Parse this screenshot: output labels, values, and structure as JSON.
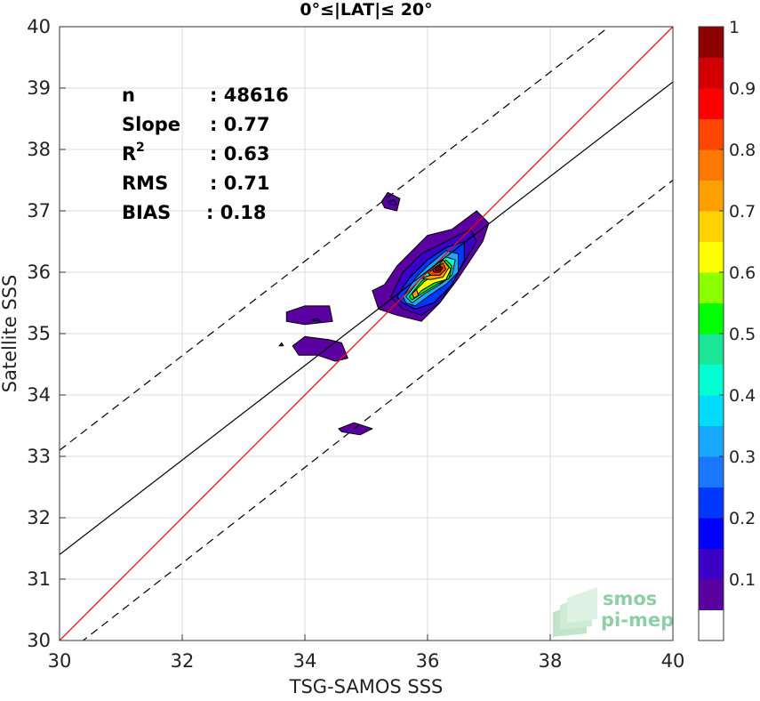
{
  "chart_data": {
    "type": "contour",
    "title": "0°≤|LAT|≤ 20°",
    "xlabel": "TSG-SAMOS SSS",
    "ylabel": "Satellite SSS",
    "xlim": [
      30,
      40
    ],
    "ylim": [
      30,
      40
    ],
    "xticks": [
      "30",
      "32",
      "34",
      "36",
      "38",
      "40"
    ],
    "yticks": [
      "30",
      "31",
      "32",
      "33",
      "34",
      "35",
      "36",
      "37",
      "38",
      "39",
      "40"
    ],
    "grid": true,
    "stats": [
      {
        "label": "n",
        "value": ": 48616"
      },
      {
        "label": "Slope",
        "value": ": 0.77"
      },
      {
        "label": "R",
        "sup": "2",
        "value": ": 0.63"
      },
      {
        "label": "RMS",
        "value": ": 0.71"
      },
      {
        "label": "BIAS",
        "value": ": 0.18"
      }
    ],
    "lines": [
      {
        "kind": "one-to-one",
        "color": "#ff0000",
        "style": "solid",
        "points": [
          [
            30,
            30
          ],
          [
            40,
            40
          ]
        ]
      },
      {
        "kind": "regression",
        "color": "#000000",
        "style": "solid",
        "points": [
          [
            30,
            31.4
          ],
          [
            40,
            39.1
          ]
        ]
      },
      {
        "kind": "regression+2rms",
        "color": "#000000",
        "style": "dashed",
        "points": [
          [
            30,
            33.1
          ],
          [
            40,
            40.8
          ]
        ]
      },
      {
        "kind": "regression-2rms",
        "color": "#000000",
        "style": "dashed",
        "points": [
          [
            30,
            29.7
          ],
          [
            40,
            37.5
          ]
        ]
      }
    ],
    "contours": [
      {
        "level": 0.05,
        "points": [
          [
            35.3,
            35.8
          ],
          [
            35.5,
            36.1
          ],
          [
            35.8,
            36.4
          ],
          [
            36.0,
            36.6
          ],
          [
            36.4,
            36.7
          ],
          [
            36.8,
            37.0
          ],
          [
            37.0,
            36.8
          ],
          [
            36.9,
            36.5
          ],
          [
            36.5,
            35.9
          ],
          [
            36.2,
            35.5
          ],
          [
            35.9,
            35.2
          ],
          [
            35.5,
            35.3
          ],
          [
            35.2,
            35.4
          ],
          [
            35.1,
            35.7
          ]
        ]
      },
      {
        "level": 0.1,
        "points": [
          [
            35.4,
            35.6
          ],
          [
            35.6,
            36.0
          ],
          [
            35.9,
            36.3
          ],
          [
            36.3,
            36.5
          ],
          [
            36.7,
            36.7
          ],
          [
            36.8,
            36.5
          ],
          [
            36.5,
            36.0
          ],
          [
            36.2,
            35.5
          ],
          [
            35.9,
            35.3
          ],
          [
            35.6,
            35.4
          ]
        ]
      },
      {
        "level": 0.2,
        "points": [
          [
            35.5,
            35.6
          ],
          [
            35.7,
            35.9
          ],
          [
            36.0,
            36.2
          ],
          [
            36.3,
            36.4
          ],
          [
            36.6,
            36.5
          ],
          [
            36.6,
            36.2
          ],
          [
            36.4,
            35.8
          ],
          [
            36.1,
            35.5
          ],
          [
            35.8,
            35.4
          ],
          [
            35.6,
            35.5
          ]
        ]
      },
      {
        "level": 0.3,
        "points": [
          [
            35.6,
            35.6
          ],
          [
            35.8,
            35.9
          ],
          [
            36.0,
            36.1
          ],
          [
            36.3,
            36.35
          ],
          [
            36.5,
            36.3
          ],
          [
            36.5,
            36.0
          ],
          [
            36.3,
            35.8
          ],
          [
            36.0,
            35.6
          ],
          [
            35.8,
            35.45
          ],
          [
            35.65,
            35.5
          ]
        ]
      },
      {
        "level": 0.4,
        "points": [
          [
            35.65,
            35.6
          ],
          [
            35.85,
            35.85
          ],
          [
            36.05,
            36.05
          ],
          [
            36.3,
            36.25
          ],
          [
            36.45,
            36.2
          ],
          [
            36.4,
            35.95
          ],
          [
            36.2,
            35.8
          ],
          [
            35.95,
            35.65
          ],
          [
            35.75,
            35.5
          ]
        ]
      },
      {
        "level": 0.5,
        "points": [
          [
            35.7,
            35.6
          ],
          [
            35.9,
            35.85
          ],
          [
            36.1,
            36.0
          ],
          [
            36.3,
            36.2
          ],
          [
            36.4,
            36.1
          ],
          [
            36.35,
            35.9
          ],
          [
            36.15,
            35.8
          ],
          [
            35.9,
            35.65
          ],
          [
            35.75,
            35.55
          ]
        ]
      },
      {
        "level": 0.6,
        "points": [
          [
            35.75,
            35.65
          ],
          [
            35.95,
            35.85
          ],
          [
            36.1,
            35.95
          ],
          [
            36.3,
            36.15
          ],
          [
            36.38,
            36.05
          ],
          [
            36.3,
            35.88
          ],
          [
            36.1,
            35.82
          ],
          [
            35.9,
            35.7
          ],
          [
            35.8,
            35.6
          ]
        ]
      },
      {
        "level": 0.7,
        "points": [
          [
            35.9,
            35.9
          ],
          [
            36.05,
            35.95
          ],
          [
            36.25,
            36.2
          ],
          [
            36.35,
            36.08
          ],
          [
            36.25,
            35.92
          ],
          [
            36.05,
            35.88
          ]
        ]
      },
      {
        "level": 0.8,
        "points": [
          [
            36.0,
            36.0
          ],
          [
            36.1,
            36.05
          ],
          [
            36.25,
            36.15
          ],
          [
            36.3,
            36.05
          ],
          [
            36.2,
            35.95
          ],
          [
            36.05,
            35.95
          ]
        ]
      },
      {
        "level": 0.9,
        "points": [
          [
            36.08,
            36.05
          ],
          [
            36.18,
            36.12
          ],
          [
            36.25,
            36.07
          ],
          [
            36.2,
            36.0
          ],
          [
            36.1,
            36.0
          ]
        ]
      },
      {
        "level": 1.0,
        "points": [
          [
            36.12,
            36.06
          ],
          [
            36.2,
            36.1
          ],
          [
            36.22,
            36.04
          ],
          [
            36.15,
            36.02
          ]
        ]
      },
      {
        "level": 0.7,
        "points": [
          [
            35.75,
            35.65
          ],
          [
            35.82,
            35.72
          ],
          [
            35.85,
            35.62
          ],
          [
            35.78,
            35.58
          ]
        ]
      },
      {
        "level": 0.05,
        "points": [
          [
            35.25,
            37.15
          ],
          [
            35.35,
            37.3
          ],
          [
            35.55,
            37.2
          ],
          [
            35.5,
            37.0
          ],
          [
            35.3,
            37.05
          ]
        ]
      },
      {
        "level": 0.1,
        "points": [
          [
            35.35,
            37.15
          ],
          [
            35.45,
            37.18
          ],
          [
            35.5,
            37.1
          ],
          [
            35.4,
            37.1
          ]
        ]
      },
      {
        "level": 0.05,
        "points": [
          [
            33.7,
            35.35
          ],
          [
            34.0,
            35.45
          ],
          [
            34.4,
            35.45
          ],
          [
            34.45,
            35.2
          ],
          [
            34.0,
            35.15
          ],
          [
            33.7,
            35.2
          ]
        ]
      },
      {
        "level": 0.1,
        "points": [
          [
            34.1,
            35.22
          ],
          [
            34.2,
            35.25
          ],
          [
            34.25,
            35.2
          ]
        ]
      },
      {
        "level": 0.05,
        "points": [
          [
            33.8,
            34.8
          ],
          [
            34.0,
            34.95
          ],
          [
            34.4,
            34.9
          ],
          [
            34.6,
            34.85
          ],
          [
            34.7,
            34.6
          ],
          [
            34.5,
            34.55
          ],
          [
            34.2,
            34.65
          ],
          [
            33.9,
            34.65
          ]
        ]
      },
      {
        "level": 0.05,
        "points": [
          [
            34.55,
            33.45
          ],
          [
            34.8,
            33.55
          ],
          [
            35.1,
            33.45
          ],
          [
            34.9,
            33.35
          ],
          [
            34.6,
            33.4
          ]
        ]
      },
      {
        "level": 0.05,
        "points": [
          [
            33.58,
            34.8
          ],
          [
            33.62,
            34.85
          ],
          [
            33.65,
            34.8
          ]
        ]
      }
    ],
    "colorbar": {
      "min": 0,
      "max": 1,
      "ticks": [
        "0.1",
        "0.2",
        "0.3",
        "0.4",
        "0.5",
        "0.6",
        "0.7",
        "0.8",
        "0.9",
        "1"
      ],
      "colors": [
        "#ffffff",
        "#5a00a0",
        "#3b00c8",
        "#0000ff",
        "#0038ff",
        "#1978ff",
        "#19a8ff",
        "#00dcff",
        "#00ffd2",
        "#19e696",
        "#00ff00",
        "#8cff00",
        "#ffff00",
        "#ffd200",
        "#ffa000",
        "#ff7800",
        "#ff4600",
        "#ff0000",
        "#d20000",
        "#8c0000"
      ]
    },
    "watermark": {
      "line1": "smos",
      "line2": "pi-mep"
    }
  }
}
